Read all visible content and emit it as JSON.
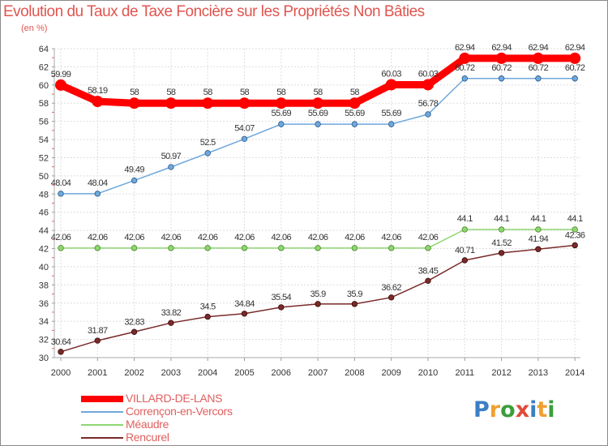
{
  "header": {
    "title": "Evolution du Taux de Taxe Foncière sur les Propriétés Non Bâties",
    "unit": "(en %)"
  },
  "chart_data": {
    "type": "line",
    "title": "Evolution du Taux de Taxe Foncière sur les Propriétés Non Bâties",
    "ylabel": "(en %)",
    "xlabel": "",
    "ylim": [
      30,
      64
    ],
    "yticks": [
      "30",
      "32",
      "34",
      "36",
      "38",
      "40",
      "42",
      "44",
      "46",
      "48",
      "50",
      "52",
      "54",
      "56",
      "58",
      "60",
      "62",
      "64"
    ],
    "grid": true,
    "categories": [
      "2000",
      "2001",
      "2002",
      "2003",
      "2004",
      "2005",
      "2006",
      "2007",
      "2008",
      "2009",
      "2010",
      "2011",
      "2012",
      "2013",
      "2014"
    ],
    "series": [
      {
        "name": "VILLARD-DE-LANS",
        "color": "#ff0000",
        "values": [
          59.99,
          58.19,
          58,
          58,
          58,
          58,
          58,
          58,
          58,
          60.03,
          60.03,
          62.94,
          62.94,
          62.94,
          62.94
        ],
        "labels": [
          "59.99",
          "58.19",
          "58",
          "58",
          "58",
          "58",
          "58",
          "58",
          "58",
          "60.03",
          "60.03",
          "62.94",
          "62.94",
          "62.94",
          "62.94"
        ]
      },
      {
        "name": "Corrençon-en-Vercors",
        "color": "#6fa8dc",
        "values": [
          48.04,
          48.04,
          49.49,
          50.97,
          52.5,
          54.07,
          55.69,
          55.69,
          55.69,
          55.69,
          56.78,
          60.72,
          60.72,
          60.72,
          60.72
        ],
        "labels": [
          "48.04",
          "48.04",
          "49.49",
          "50.97",
          "52.5",
          "54.07",
          "55.69",
          "55.69",
          "55.69",
          "55.69",
          "56.78",
          "60.72",
          "60.72",
          "60.72",
          "60.72"
        ]
      },
      {
        "name": "Méaudre",
        "color": "#8fd672",
        "values": [
          42.06,
          42.06,
          42.06,
          42.06,
          42.06,
          42.06,
          42.06,
          42.06,
          42.06,
          42.06,
          42.06,
          44.1,
          44.1,
          44.1,
          44.1
        ],
        "labels": [
          "42.06",
          "42.06",
          "42.06",
          "42.06",
          "42.06",
          "42.06",
          "42.06",
          "42.06",
          "42.06",
          "42.06",
          "42.06",
          "44.1",
          "44.1",
          "44.1",
          "44.1"
        ]
      },
      {
        "name": "Rencurel",
        "color": "#7a2a2a",
        "values": [
          30.64,
          31.87,
          32.83,
          33.82,
          34.5,
          34.84,
          35.54,
          35.9,
          35.9,
          36.62,
          38.45,
          40.71,
          41.52,
          41.94,
          42.36
        ],
        "labels": [
          "30.64",
          "31.87",
          "32.83",
          "33.82",
          "34.5",
          "34.84",
          "35.54",
          "35.9",
          "35.9",
          "36.62",
          "38.45",
          "40.71",
          "41.52",
          "41.94",
          "42.36"
        ]
      }
    ]
  },
  "legend": {
    "items": [
      {
        "label": "VILLARD-DE-LANS",
        "color": "#ff0000"
      },
      {
        "label": "Corrençon-en-Vercors",
        "color": "#6fa8dc"
      },
      {
        "label": "Méaudre",
        "color": "#8fd672"
      },
      {
        "label": "Rencurel",
        "color": "#7a2a2a"
      }
    ]
  },
  "logo": {
    "text": "Proxiti"
  }
}
